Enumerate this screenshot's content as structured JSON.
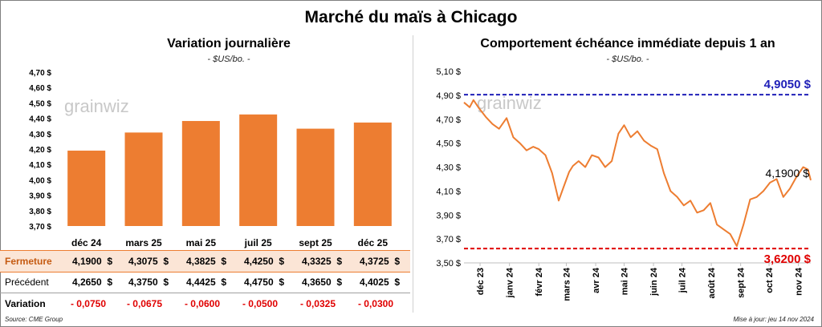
{
  "title": "Marché du maïs à Chicago",
  "left_chart": {
    "title": "Variation journalière",
    "unit": "- $US/bo. -"
  },
  "right_chart": {
    "title": "Comportement échéance immédiate depuis 1 an",
    "unit": "- $US/bo. -"
  },
  "watermark": "grainwiz",
  "chart_data": [
    {
      "type": "bar",
      "title": "Variation journalière",
      "categories": [
        "déc 24",
        "mars 25",
        "mai 25",
        "juil 25",
        "sept 25",
        "déc 25"
      ],
      "values": [
        4.19,
        4.3075,
        4.3825,
        4.425,
        4.3325,
        4.3725
      ],
      "ylim": [
        3.7,
        4.7
      ],
      "yticks": [
        "3,70 $",
        "3,80 $",
        "3,90 $",
        "4,00 $",
        "4,10 $",
        "4,20 $",
        "4,30 $",
        "4,40 $",
        "4,50 $",
        "4,60 $",
        "4,70 $"
      ],
      "grid": false,
      "color": "#ED7D31"
    },
    {
      "type": "line",
      "title": "Comportement échéance immédiate depuis 1 an",
      "ylim": [
        3.5,
        5.1
      ],
      "yticks": [
        "3,50 $",
        "3,70 $",
        "3,90 $",
        "4,10 $",
        "4,30 $",
        "4,50 $",
        "4,70 $",
        "4,90 $",
        "5,10 $"
      ],
      "xticks": [
        "déc 23",
        "janv 24",
        "févr 24",
        "mars 24",
        "avr 24",
        "mai 24",
        "juin 24",
        "juil 24",
        "août 24",
        "sept 24",
        "oct 24",
        "nov 24"
      ],
      "x": [
        "2023-11-14",
        "2023-11-20",
        "2023-11-24",
        "2023-11-30",
        "2023-12-07",
        "2023-12-14",
        "2023-12-21",
        "2023-12-29",
        "2024-01-05",
        "2024-01-12",
        "2024-01-19",
        "2024-01-26",
        "2024-02-01",
        "2024-02-08",
        "2024-02-15",
        "2024-02-22",
        "2024-02-27",
        "2024-03-04",
        "2024-03-08",
        "2024-03-14",
        "2024-03-21",
        "2024-03-28",
        "2024-04-04",
        "2024-04-11",
        "2024-04-18",
        "2024-04-25",
        "2024-05-01",
        "2024-05-08",
        "2024-05-15",
        "2024-05-22",
        "2024-05-29",
        "2024-06-05",
        "2024-06-12",
        "2024-06-19",
        "2024-06-26",
        "2024-07-03",
        "2024-07-10",
        "2024-07-17",
        "2024-07-24",
        "2024-07-31",
        "2024-08-07",
        "2024-08-14",
        "2024-08-21",
        "2024-08-28",
        "2024-09-04",
        "2024-09-11",
        "2024-09-18",
        "2024-09-25",
        "2024-10-02",
        "2024-10-09",
        "2024-10-16",
        "2024-10-23",
        "2024-10-30",
        "2024-11-06",
        "2024-11-11",
        "2024-11-14"
      ],
      "values": [
        4.84,
        4.8,
        4.86,
        4.79,
        4.72,
        4.66,
        4.62,
        4.71,
        4.55,
        4.5,
        4.44,
        4.47,
        4.45,
        4.4,
        4.25,
        4.02,
        4.13,
        4.26,
        4.31,
        4.35,
        4.3,
        4.4,
        4.38,
        4.3,
        4.35,
        4.58,
        4.65,
        4.55,
        4.6,
        4.52,
        4.48,
        4.45,
        4.25,
        4.1,
        4.05,
        3.98,
        4.02,
        3.92,
        3.94,
        4.0,
        3.82,
        3.78,
        3.74,
        3.64,
        3.82,
        4.03,
        4.05,
        4.1,
        4.17,
        4.2,
        4.05,
        4.12,
        4.22,
        4.3,
        4.28,
        4.19
      ],
      "reference_lines": [
        {
          "value": 4.905,
          "label": "4,9050 $",
          "color": "#1F1FB8"
        },
        {
          "value": 3.62,
          "label": "3,6200 $",
          "color": "#E00000"
        }
      ],
      "last_label": "4,1900 $",
      "color": "#ED7D31",
      "grid": false
    }
  ],
  "table": {
    "rows": [
      {
        "label": "Fermeture",
        "values": [
          "4,1900  $",
          "4,3075  $",
          "4,3825  $",
          "4,4250  $",
          "4,3325  $",
          "4,3725  $"
        ]
      },
      {
        "label": "Précédent",
        "values": [
          "4,2650  $",
          "4,3750  $",
          "4,4425  $",
          "4,4750  $",
          "4,3650  $",
          "4,4025  $"
        ]
      },
      {
        "label": "Variation",
        "values": [
          "- 0,0750",
          "- 0,0675",
          "- 0,0600",
          "- 0,0500",
          "- 0,0325",
          "- 0,0300"
        ]
      }
    ]
  },
  "source": "Source: CME Group",
  "updated": "Mise à jour: jeu 14 nov 2024"
}
